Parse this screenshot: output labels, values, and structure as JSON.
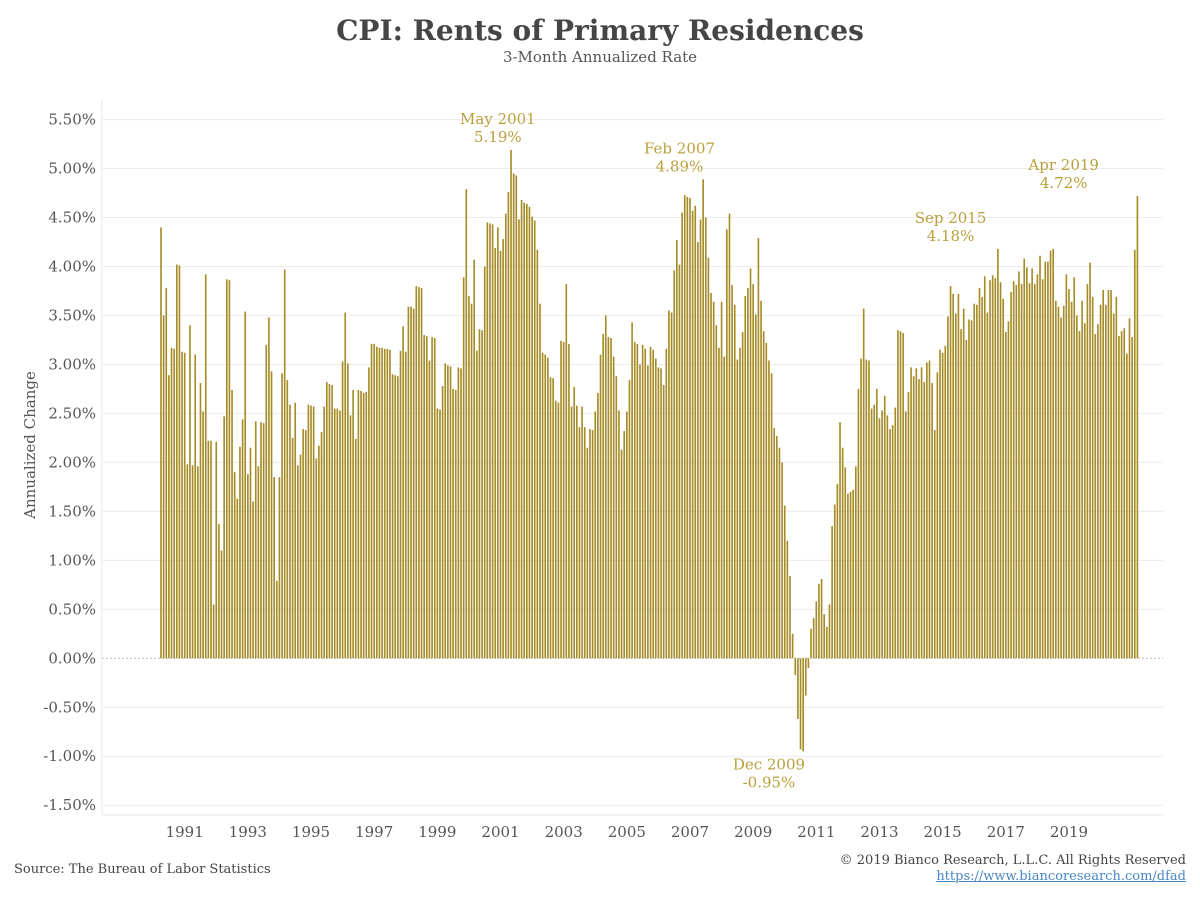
{
  "header": {
    "title": "CPI: Rents of Primary Residences",
    "subtitle": "3-Month Annualized Rate"
  },
  "footer": {
    "source": "Source: The Bureau of Labor Statistics",
    "copyright": "© 2019 Bianco Research, L.L.C. All Rights Reserved",
    "url": "https://www.biancoresearch.com/dfad"
  },
  "colors": {
    "bar": "#a58c26",
    "annotation": "#b9a03c",
    "grid": "#ececec",
    "zero_line": "#bbbbbb"
  },
  "chart_data": {
    "type": "bar",
    "title": "CPI: Rents of Primary Residences",
    "subtitle": "3-Month Annualized Rate",
    "xlabel": "",
    "ylabel": "Annualized Change",
    "ylim": [
      -1.6,
      5.7
    ],
    "y_ticks": [
      -1.5,
      -1.0,
      -0.5,
      0.0,
      0.5,
      1.0,
      1.5,
      2.0,
      2.5,
      3.0,
      3.5,
      4.0,
      4.5,
      5.0,
      5.5
    ],
    "y_tick_labels": [
      "-1.50%",
      "-1.00%",
      "-0.50%",
      "0.00%",
      "0.50%",
      "1.00%",
      "1.50%",
      "2.00%",
      "2.50%",
      "3.00%",
      "3.50%",
      "4.00%",
      "4.50%",
      "5.00%",
      "5.50%"
    ],
    "x_tick_labels": [
      "1991",
      "1993",
      "1995",
      "1997",
      "1999",
      "2001",
      "2003",
      "2005",
      "2007",
      "2009",
      "2011",
      "2013",
      "2015",
      "2017",
      "2019"
    ],
    "x_start": "1990-09",
    "x_end": "2019-04",
    "grid": true,
    "legend": "none",
    "series": [
      {
        "values": [
          4.4,
          3.5,
          3.78,
          2.89,
          3.17,
          3.16,
          4.02,
          4.01,
          3.13,
          3.12,
          1.98,
          3.4,
          1.97,
          3.1,
          1.96,
          2.81,
          2.52,
          3.92,
          2.22,
          2.22,
          0.55,
          2.21,
          1.37,
          1.1,
          2.47,
          3.87,
          3.86,
          2.74,
          1.9,
          1.63,
          2.16,
          2.44,
          3.54,
          1.88,
          2.15,
          1.6,
          2.42,
          1.96,
          2.41,
          2.4,
          3.2,
          3.48,
          2.93,
          1.85,
          0.79,
          1.85,
          2.91,
          3.97,
          2.84,
          2.59,
          2.25,
          2.61,
          1.97,
          2.08,
          2.34,
          2.33,
          2.59,
          2.58,
          2.57,
          2.04,
          2.17,
          2.31,
          2.57,
          2.82,
          2.8,
          2.79,
          2.55,
          2.55,
          2.53,
          3.03,
          3.53,
          3.01,
          2.48,
          2.74,
          2.24,
          2.74,
          2.73,
          2.71,
          2.72,
          2.97,
          3.21,
          3.21,
          3.18,
          3.17,
          3.17,
          3.16,
          3.16,
          3.15,
          2.9,
          2.89,
          2.88,
          3.14,
          3.39,
          3.13,
          3.59,
          3.59,
          3.57,
          3.8,
          3.79,
          3.78,
          3.3,
          3.29,
          3.04,
          3.28,
          3.27,
          2.55,
          2.54,
          2.78,
          3.01,
          2.99,
          2.98,
          2.75,
          2.74,
          2.97,
          2.96,
          3.89,
          4.79,
          3.7,
          3.62,
          4.07,
          3.14,
          3.36,
          3.35,
          4.0,
          4.45,
          4.44,
          4.43,
          4.19,
          4.4,
          4.16,
          4.28,
          4.54,
          4.76,
          5.19,
          4.95,
          4.93,
          4.48,
          4.68,
          4.65,
          4.64,
          4.61,
          4.51,
          4.47,
          4.17,
          3.62,
          3.12,
          3.1,
          3.07,
          2.87,
          2.86,
          2.63,
          2.61,
          3.24,
          3.23,
          3.82,
          3.21,
          2.57,
          2.77,
          2.58,
          2.36,
          2.57,
          2.36,
          2.15,
          2.34,
          2.33,
          2.52,
          2.71,
          3.1,
          3.31,
          3.5,
          3.28,
          3.27,
          3.08,
          2.88,
          2.53,
          2.13,
          2.32,
          2.52,
          2.84,
          3.43,
          3.23,
          3.21,
          3.0,
          3.2,
          3.16,
          2.99,
          3.18,
          3.15,
          3.06,
          2.97,
          2.96,
          2.79,
          3.16,
          3.55,
          3.53,
          3.96,
          4.27,
          4.02,
          4.55,
          4.73,
          4.71,
          4.7,
          4.57,
          4.62,
          4.25,
          4.48,
          4.89,
          4.5,
          4.09,
          3.73,
          3.64,
          3.4,
          3.17,
          3.64,
          3.08,
          4.38,
          4.54,
          3.81,
          3.61,
          3.05,
          3.17,
          3.33,
          3.7,
          3.78,
          3.98,
          3.82,
          3.51,
          4.29,
          3.65,
          3.34,
          3.22,
          3.04,
          2.91,
          2.35,
          2.27,
          2.15,
          2.0,
          1.56,
          1.2,
          0.84,
          0.25,
          -0.17,
          -0.62,
          -0.93,
          -0.95,
          -0.38,
          -0.1,
          0.3,
          0.41,
          0.58,
          0.76,
          0.81,
          0.45,
          0.32,
          0.55,
          1.35,
          1.57,
          1.78,
          2.41,
          2.15,
          1.95,
          1.68,
          1.7,
          1.72,
          1.96,
          2.75,
          3.06,
          3.57,
          3.05,
          3.04,
          2.55,
          2.59,
          2.75,
          2.45,
          2.53,
          2.68,
          2.48,
          2.34,
          2.38,
          2.56,
          3.35,
          3.34,
          3.32,
          2.52,
          2.72,
          2.97,
          2.88,
          2.96,
          2.85,
          2.97,
          2.82,
          3.02,
          3.04,
          2.81,
          2.33,
          2.92,
          3.15,
          3.12,
          3.19,
          3.49,
          3.8,
          3.72,
          3.52,
          3.72,
          3.36,
          3.57,
          3.25,
          3.46,
          3.45,
          3.62,
          3.61,
          3.78,
          3.69,
          3.9,
          3.53,
          3.86,
          3.91,
          3.88,
          4.18,
          3.84,
          3.67,
          3.33,
          3.44,
          3.74,
          3.85,
          3.81,
          3.95,
          3.82,
          4.08,
          3.99,
          3.83,
          3.98,
          3.82,
          3.92,
          4.11,
          3.87,
          4.05,
          4.05,
          4.16,
          4.18,
          3.65,
          3.59,
          3.48,
          3.6,
          3.92,
          3.77,
          3.64,
          3.89,
          3.5,
          3.34,
          3.65,
          3.42,
          3.82,
          4.04,
          3.69,
          3.31,
          3.41,
          3.61,
          3.76,
          3.61,
          3.76,
          3.76,
          3.52,
          3.69,
          3.29,
          3.34,
          3.37,
          3.11,
          3.47,
          3.28,
          4.17,
          4.72
        ]
      }
    ],
    "annotations": [
      {
        "date": "May 2001",
        "value": "5.19%",
        "y": 5.19
      },
      {
        "date": "Feb 2007",
        "value": "4.89%",
        "y": 4.89
      },
      {
        "date": "Dec 2009",
        "value": "-0.95%",
        "y": -0.95
      },
      {
        "date": "Sep 2015",
        "value": "4.18%",
        "y": 4.18
      },
      {
        "date": "Apr 2019",
        "value": "4.72%",
        "y": 4.72
      }
    ]
  }
}
